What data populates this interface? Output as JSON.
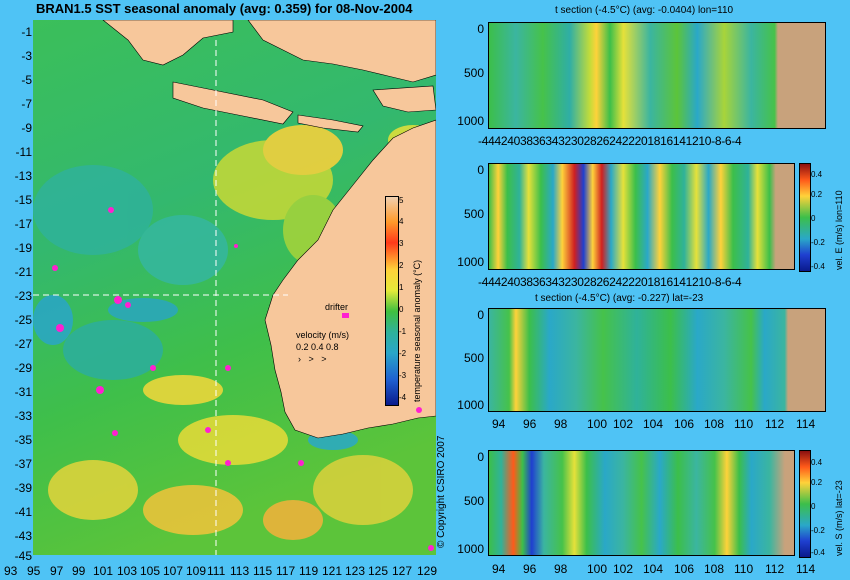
{
  "map": {
    "title": "BRAN1.5 SST seasonal anomaly (avg: 0.359) for 08-Nov-2004",
    "lat_ticks": [
      "-1",
      "-3",
      "-5",
      "-7",
      "-9",
      "-11",
      "-13",
      "-15",
      "-17",
      "-19",
      "-21",
      "-23",
      "-25",
      "-27",
      "-29",
      "-31",
      "-33",
      "-35",
      "-37",
      "-39",
      "-41",
      "-43",
      "-45"
    ],
    "lon_ticks": [
      "93",
      "95",
      "97",
      "99",
      "101",
      "103",
      "105",
      "107",
      "109",
      "111",
      "113",
      "115",
      "117",
      "119",
      "121",
      "123",
      "125",
      "127",
      "129"
    ],
    "colorbar_label": "temperature seasonal anomaly (°C)",
    "colorbar_ticks": [
      "5",
      "4",
      "3",
      "2",
      "1",
      "0",
      "-1",
      "-2",
      "-3",
      "-4"
    ],
    "drifter_label": "drifter",
    "velocity_label": "velocity (m/s)",
    "velocity_scale": "0.2 0.4 0.8",
    "copyright": "© Copyright CSIRO 2007"
  },
  "sections": [
    {
      "title": "t section (-4.5°C) (avg: -0.0404) lon=110",
      "x_ticks": "-444240383634323028262422201816141210-8-6-4",
      "y_ticks": [
        "0",
        "500",
        "1000"
      ]
    },
    {
      "title": "",
      "x_ticks": "-444240383634323028262422201816141210-8-6-4",
      "y_ticks": [
        "0",
        "500",
        "1000"
      ],
      "colorbar_label": "vel. E (m/s) lon=110",
      "colorbar_ticks": [
        "0.4",
        "0.2",
        "0",
        "-0.2",
        "-0.4"
      ]
    },
    {
      "title": "t section (-4.5°C) (avg: -0.227) lat=-23",
      "x_ticks": [
        "94",
        "96",
        "98",
        "100",
        "102",
        "104",
        "106",
        "108",
        "110",
        "112",
        "114"
      ],
      "y_ticks": [
        "0",
        "500",
        "1000"
      ]
    },
    {
      "title": "",
      "x_ticks": [
        "94",
        "96",
        "98",
        "100",
        "102",
        "104",
        "106",
        "108",
        "110",
        "112",
        "114"
      ],
      "y_ticks": [
        "0",
        "500",
        "1000"
      ],
      "colorbar_label": "vel. S (m/s) lat=-23",
      "colorbar_ticks": [
        "0.4",
        "0.2",
        "0",
        "-0.2",
        "-0.4"
      ]
    }
  ],
  "colors": {
    "background": "#4fc3f5",
    "land": "#f7c79b",
    "section_land": "#c8a27c",
    "drifter": "#ff20d0"
  }
}
